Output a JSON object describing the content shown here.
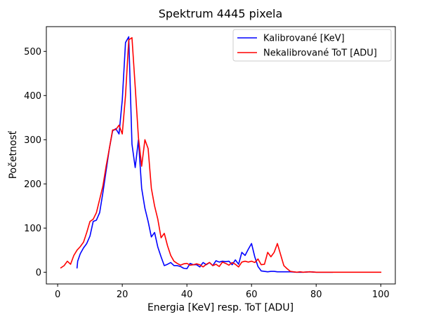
{
  "chart_data": {
    "type": "line",
    "title": "Spektrum 4445 pixela",
    "xlabel": "Energia [KeV] resp. ToT [ADU]",
    "ylabel": "Početnosť",
    "xlim": [
      -3.5,
      104.5
    ],
    "ylim": [
      -26.5,
      556
    ],
    "xticks": [
      0,
      20,
      40,
      60,
      80,
      100
    ],
    "yticks": [
      0,
      100,
      200,
      300,
      400,
      500
    ],
    "grid": false,
    "legend_position": "top-right",
    "series": [
      {
        "name": "Kalibrované [KeV]",
        "color": "#0000ff",
        "x": [
          6,
          6.2,
          7,
          8,
          9,
          10,
          11,
          12,
          13,
          14,
          15,
          16,
          17,
          18,
          19,
          20,
          21,
          22,
          23,
          24,
          25,
          26,
          27,
          28,
          29,
          30,
          31,
          32,
          33,
          34,
          35,
          36,
          37,
          38,
          39,
          40,
          41,
          42,
          43,
          44,
          45,
          46,
          47,
          48,
          49,
          50,
          51,
          52,
          53,
          54,
          55,
          56,
          57,
          58,
          59,
          60,
          61,
          62,
          63,
          64,
          65,
          66,
          67,
          68,
          70,
          72,
          74,
          76,
          78,
          80,
          82,
          85
        ],
        "y": [
          10,
          25,
          42,
          55,
          65,
          82,
          115,
          118,
          135,
          180,
          230,
          280,
          320,
          325,
          313,
          390,
          520,
          533,
          290,
          237,
          300,
          190,
          145,
          115,
          80,
          90,
          57,
          35,
          15,
          18,
          22,
          15,
          15,
          13,
          9,
          8,
          20,
          17,
          17,
          12,
          22,
          17,
          22,
          15,
          26,
          23,
          25,
          24,
          25,
          17,
          28,
          18,
          45,
          38,
          52,
          65,
          35,
          13,
          3,
          2,
          1,
          2,
          2,
          1,
          1,
          1,
          0,
          0,
          1,
          0,
          0,
          0
        ]
      },
      {
        "name": "Nekalibrované ToT [ADU]",
        "color": "#ff0000",
        "x": [
          1,
          2,
          3,
          4,
          5,
          6,
          7,
          8,
          9,
          10,
          11,
          12,
          13,
          14,
          15,
          16,
          17,
          18,
          19,
          20,
          21,
          22,
          23,
          24,
          25,
          26,
          27,
          28,
          29,
          30,
          31,
          32,
          33,
          34,
          35,
          36,
          37,
          38,
          39,
          40,
          41,
          42,
          43,
          44,
          45,
          46,
          47,
          48,
          49,
          50,
          51,
          52,
          53,
          54,
          55,
          56,
          57,
          58,
          59,
          60,
          61,
          62,
          63,
          64,
          65,
          66,
          67,
          68,
          69,
          70,
          71,
          72,
          73,
          74,
          75,
          76,
          78,
          80,
          85,
          90,
          95,
          100
        ],
        "y": [
          10,
          15,
          25,
          18,
          38,
          50,
          58,
          68,
          90,
          115,
          120,
          135,
          165,
          195,
          240,
          280,
          322,
          323,
          333,
          313,
          400,
          526,
          531,
          420,
          305,
          240,
          300,
          280,
          190,
          150,
          120,
          78,
          88,
          60,
          38,
          25,
          20,
          16,
          19,
          20,
          16,
          17,
          19,
          17,
          12,
          18,
          22,
          15,
          18,
          13,
          23,
          20,
          16,
          22,
          18,
          12,
          23,
          25,
          23,
          25,
          22,
          30,
          17,
          18,
          45,
          35,
          45,
          65,
          40,
          15,
          8,
          2,
          1,
          0,
          1,
          0,
          1,
          0,
          0,
          0,
          0,
          0
        ]
      }
    ]
  }
}
